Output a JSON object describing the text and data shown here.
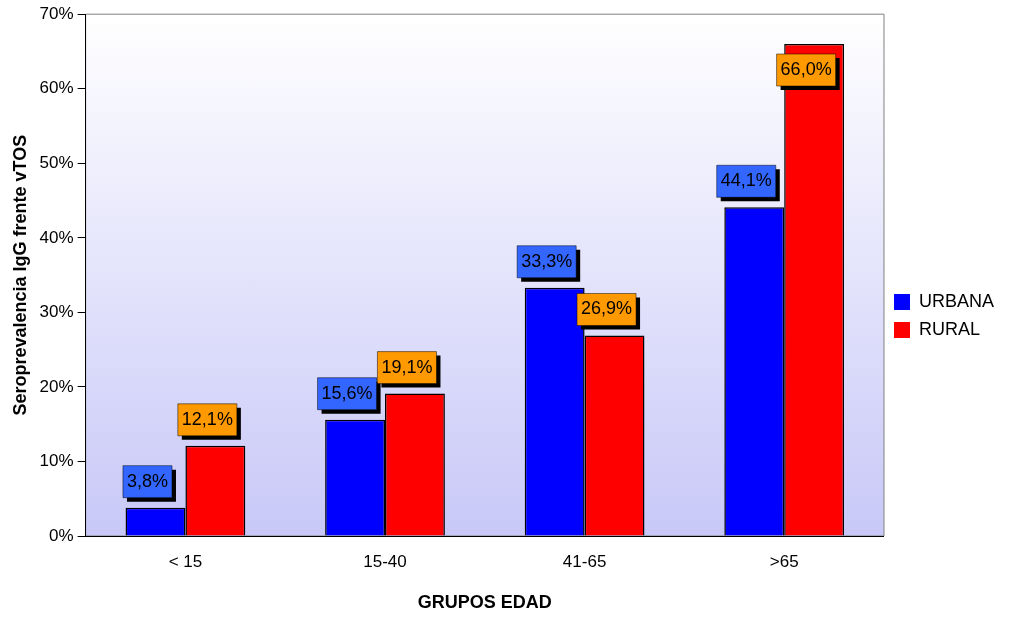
{
  "chart_data": {
    "type": "bar",
    "xlabel": "GRUPOS EDAD",
    "ylabel": "Seroprevalencia IgG frente vTOS",
    "categories": [
      "< 15",
      "15-40",
      "41-65",
      ">65"
    ],
    "series": [
      {
        "name": "URBANA",
        "color": "#0000ff",
        "values": [
          3.8,
          15.6,
          33.3,
          44.1
        ],
        "value_labels": [
          "3,8%",
          "15,6%",
          "33,3%",
          "44,1%"
        ]
      },
      {
        "name": "RURAL",
        "color": "#ff0000",
        "values": [
          12.1,
          19.1,
          26.9,
          66.0
        ],
        "value_labels": [
          "12,1%",
          "19,1%",
          "26,9%",
          "66,0%"
        ]
      }
    ],
    "ylim": [
      0,
      70
    ],
    "yticks": [
      {
        "value": 0,
        "label": "0%"
      },
      {
        "value": 10,
        "label": "10%"
      },
      {
        "value": 20,
        "label": "20%"
      },
      {
        "value": 30,
        "label": "30%"
      },
      {
        "value": 40,
        "label": "40%"
      },
      {
        "value": 50,
        "label": "50%"
      },
      {
        "value": 60,
        "label": "60%"
      },
      {
        "value": 70,
        "label": "70%"
      }
    ],
    "grid": false,
    "legend": "right"
  }
}
